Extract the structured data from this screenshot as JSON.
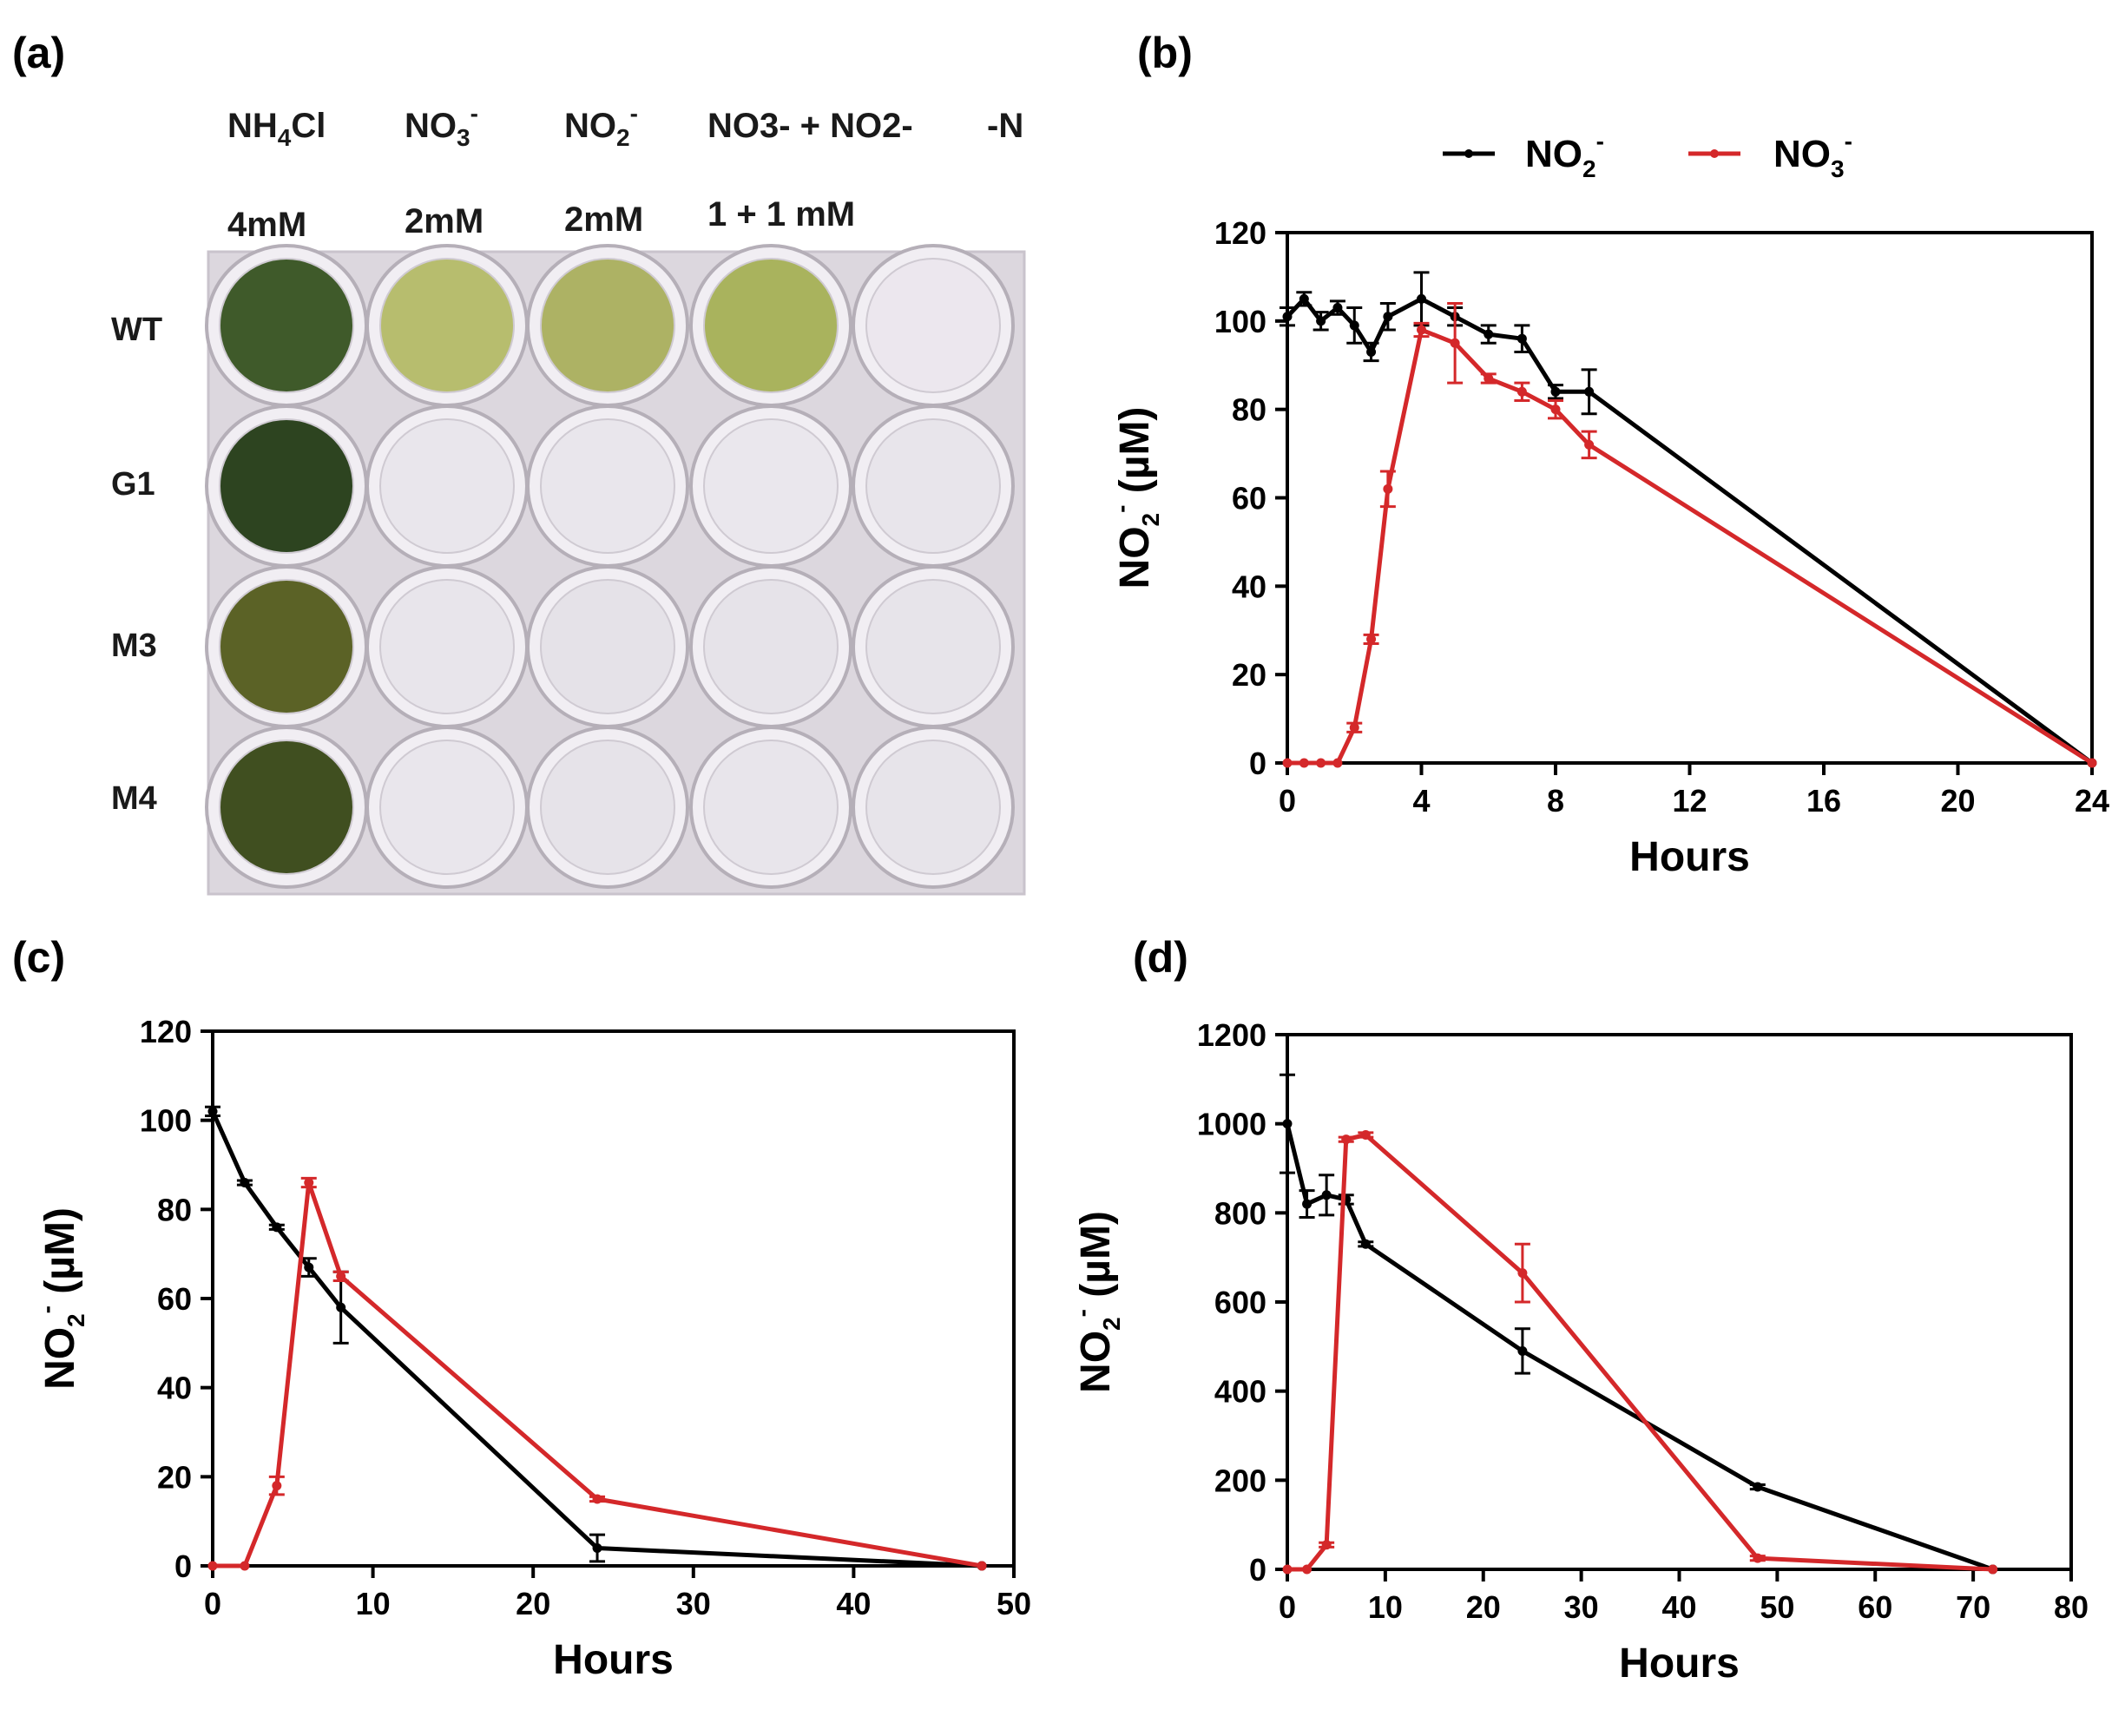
{
  "panels": {
    "a": {
      "label": "(a)",
      "columns": [
        {
          "name": "NH",
          "sub": "4",
          "rest": "Cl",
          "sup": "",
          "conc": "4mM"
        },
        {
          "name": "NO",
          "sub": "3",
          "rest": "",
          "sup": "-",
          "conc": "2mM"
        },
        {
          "name": "NO",
          "sub": "2",
          "rest": "",
          "sup": "-",
          "conc": "2mM"
        },
        {
          "name": "NO3- + NO2-",
          "conc": "1 + 1 mM"
        },
        {
          "name": "-N",
          "conc": ""
        }
      ],
      "rows": [
        "WT",
        "G1",
        "M3",
        "M4"
      ],
      "well_colors": [
        [
          "#3f5a2a",
          "#b7bd6e",
          "#adb264",
          "#a9b35d",
          "#ece7ee"
        ],
        [
          "#2d4420",
          "#e9e6ec",
          "#e9e6ec",
          "#eae7ed",
          "#e8e5eb"
        ],
        [
          "#5b6226",
          "#e8e5eb",
          "#e5e2e8",
          "#e6e3e9",
          "#e7e4ea"
        ],
        [
          "#404f20",
          "#e9e6ec",
          "#e6e3e9",
          "#e8e5eb",
          "#e7e4ea"
        ]
      ]
    },
    "b": {
      "label": "(b)"
    },
    "c": {
      "label": "(c)"
    },
    "d": {
      "label": "(d)"
    }
  },
  "legend": {
    "black_label": "NO2-",
    "red_label": "NO3-"
  },
  "colors": {
    "black": "#000000",
    "red": "#d4282a"
  },
  "chart_data": [
    {
      "id": "b",
      "type": "line",
      "xlabel": "Hours",
      "ylabel": "NO2- (µM)",
      "xlim": [
        0,
        24
      ],
      "ylim": [
        0,
        120
      ],
      "xticks": [
        0,
        4,
        8,
        12,
        16,
        20,
        24
      ],
      "yticks": [
        0,
        20,
        40,
        60,
        80,
        100,
        120
      ],
      "series": [
        {
          "name": "NO2-",
          "color": "black",
          "x": [
            0,
            0.5,
            1,
            1.5,
            2,
            2.5,
            3,
            4,
            5,
            6,
            7,
            8,
            9,
            24
          ],
          "y": [
            101,
            105,
            100,
            103,
            99,
            93,
            101,
            105,
            101,
            97,
            96,
            84,
            84,
            0
          ],
          "err": [
            2,
            1.5,
            2,
            1.5,
            4,
            2,
            3,
            6,
            2,
            2,
            3,
            1.5,
            5,
            0
          ]
        },
        {
          "name": "NO3-",
          "color": "red",
          "x": [
            0,
            0.5,
            1,
            1.5,
            2,
            2.5,
            3,
            4,
            5,
            6,
            7,
            8,
            9,
            24
          ],
          "y": [
            0,
            0,
            0,
            0,
            8,
            28,
            62,
            98,
            95,
            87,
            84,
            80,
            72,
            0
          ],
          "err": [
            0,
            0,
            0,
            0,
            1,
            1,
            4,
            1.5,
            9,
            1,
            2,
            2,
            3,
            0
          ]
        }
      ]
    },
    {
      "id": "c",
      "type": "line",
      "xlabel": "Hours",
      "ylabel": "NO2- (µM)",
      "xlim": [
        0,
        50
      ],
      "ylim": [
        0,
        120
      ],
      "xticks": [
        0,
        10,
        20,
        30,
        40,
        50
      ],
      "yticks": [
        0,
        20,
        40,
        60,
        80,
        100,
        120
      ],
      "series": [
        {
          "name": "NO2-",
          "color": "black",
          "x": [
            0,
            2,
            4,
            6,
            8,
            24,
            48
          ],
          "y": [
            102,
            86,
            76,
            67,
            58,
            4,
            0
          ],
          "err": [
            1,
            0.5,
            0.5,
            2,
            8,
            3,
            0
          ]
        },
        {
          "name": "NO3-",
          "color": "red",
          "x": [
            0,
            2,
            4,
            6,
            8,
            24,
            48
          ],
          "y": [
            0,
            0,
            18,
            86,
            65,
            15,
            0
          ],
          "err": [
            0,
            0,
            2,
            1,
            1,
            0.5,
            0
          ]
        }
      ]
    },
    {
      "id": "d",
      "type": "line",
      "xlabel": "Hours",
      "ylabel": "NO2- (µM)",
      "xlim": [
        0,
        80
      ],
      "ylim": [
        0,
        1200
      ],
      "xticks": [
        0,
        10,
        20,
        30,
        40,
        50,
        60,
        70,
        80
      ],
      "yticks": [
        0,
        200,
        400,
        600,
        800,
        1000,
        1200
      ],
      "series": [
        {
          "name": "NO2-",
          "color": "black",
          "x": [
            0,
            2,
            4,
            6,
            8,
            24,
            48,
            72
          ],
          "y": [
            1000,
            820,
            840,
            830,
            730,
            490,
            185,
            0
          ],
          "err": [
            110,
            30,
            45,
            10,
            5,
            50,
            5,
            0
          ]
        },
        {
          "name": "NO3-",
          "color": "red",
          "x": [
            0,
            2,
            4,
            6,
            8,
            24,
            48,
            72
          ],
          "y": [
            0,
            0,
            55,
            965,
            975,
            665,
            25,
            0
          ],
          "err": [
            0,
            0,
            5,
            5,
            5,
            65,
            5,
            0
          ]
        }
      ]
    }
  ]
}
